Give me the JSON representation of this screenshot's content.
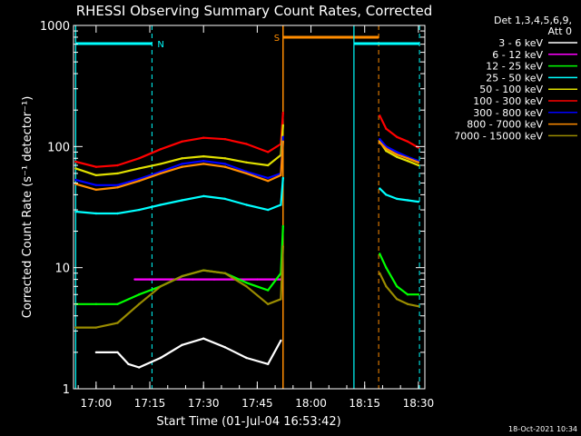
{
  "chart_data": {
    "type": "line",
    "title": "RHESSI Observing Summary Count Rates, Corrected",
    "xlabel": "Start Time (01-Jul-04 16:53:42)",
    "ylabel": "Corrected Count Rate (s⁻¹ detector⁻¹)",
    "yscale": "log",
    "xlim": [
      16.895,
      18.53
    ],
    "ylim": [
      1,
      1000
    ],
    "x_ticks": [
      {
        "x": 17.0,
        "label": "17:00"
      },
      {
        "x": 17.25,
        "label": "17:15"
      },
      {
        "x": 17.5,
        "label": "17:30"
      },
      {
        "x": 17.75,
        "label": "17:45"
      },
      {
        "x": 18.0,
        "label": "18:00"
      },
      {
        "x": 18.25,
        "label": "18:15"
      },
      {
        "x": 18.5,
        "label": "18:30"
      }
    ],
    "y_ticks": [
      {
        "y": 1,
        "label": "1"
      },
      {
        "y": 10,
        "label": "10"
      },
      {
        "y": 100,
        "label": "100"
      },
      {
        "y": 1000,
        "label": "1000"
      }
    ],
    "legend": {
      "position": "top-right",
      "header": [
        "Det 1,3,4,5,6,9,",
        "Att 0"
      ],
      "entries": [
        {
          "name": "3 - 6 keV",
          "color": "#ffffff"
        },
        {
          "name": "6 - 12 keV",
          "color": "#ff00ff"
        },
        {
          "name": "12 - 25 keV",
          "color": "#00ff00"
        },
        {
          "name": "25 - 50 keV",
          "color": "#00ffff"
        },
        {
          "name": "50 - 100 keV",
          "color": "#e0e000"
        },
        {
          "name": "100 - 300 keV",
          "color": "#ff0000"
        },
        {
          "name": "300 - 800 keV",
          "color": "#0000ff"
        },
        {
          "name": "800 - 7000 keV",
          "color": "#ff8c00"
        },
        {
          "name": "7000 - 15000 keV",
          "color": "#9a8c00"
        }
      ]
    },
    "annotations": {
      "night": {
        "label": "N",
        "start": 16.905,
        "end": 17.26,
        "color": "#00ffff"
      },
      "saa": {
        "label": "S",
        "start": 17.87,
        "end": 18.315,
        "color": "#ff8c00"
      },
      "night2": {
        "start": 18.2,
        "end": 18.505,
        "color": "#00ffff"
      }
    },
    "gap": [
      17.87,
      18.32
    ],
    "series": [
      {
        "name": "100 - 300 keV",
        "color": "#ff0000",
        "x": [
          16.905,
          17.0,
          17.1,
          17.2,
          17.3,
          17.4,
          17.5,
          17.6,
          17.7,
          17.8,
          17.86,
          17.87,
          18.32,
          18.35,
          18.4,
          18.45,
          18.5
        ],
        "y": [
          75,
          68,
          70,
          80,
          95,
          110,
          118,
          115,
          105,
          90,
          105,
          190,
          180,
          140,
          120,
          110,
          98
        ]
      },
      {
        "name": "50 - 100 keV",
        "color": "#e0e000",
        "x": [
          16.905,
          17.0,
          17.1,
          17.2,
          17.3,
          17.4,
          17.5,
          17.6,
          17.7,
          17.8,
          17.86,
          17.87,
          18.32,
          18.35,
          18.4,
          18.45,
          18.5
        ],
        "y": [
          66,
          58,
          60,
          66,
          72,
          80,
          83,
          80,
          74,
          70,
          85,
          150,
          110,
          92,
          82,
          76,
          70
        ]
      },
      {
        "name": "300 - 800 keV",
        "color": "#0000ff",
        "x": [
          16.905,
          17.0,
          17.1,
          17.2,
          17.3,
          17.4,
          17.5,
          17.6,
          17.7,
          17.8,
          17.86,
          17.87,
          18.32,
          18.35,
          18.4,
          18.45,
          18.5
        ],
        "y": [
          53,
          48,
          48,
          54,
          62,
          72,
          76,
          72,
          62,
          55,
          60,
          120,
          115,
          100,
          90,
          82,
          76
        ]
      },
      {
        "name": "800 - 7000 keV",
        "color": "#ff8c00",
        "x": [
          16.905,
          17.0,
          17.1,
          17.2,
          17.3,
          17.4,
          17.5,
          17.6,
          17.7,
          17.8,
          17.86,
          17.87,
          18.32,
          18.35,
          18.4,
          18.45,
          18.5
        ],
        "y": [
          49,
          44,
          46,
          52,
          60,
          68,
          72,
          68,
          60,
          52,
          58,
          110,
          108,
          96,
          86,
          80,
          74
        ]
      },
      {
        "name": "25 - 50 keV",
        "color": "#00ffff",
        "x": [
          16.905,
          17.0,
          17.1,
          17.2,
          17.3,
          17.4,
          17.5,
          17.6,
          17.7,
          17.8,
          17.86,
          17.87,
          18.32,
          18.35,
          18.4,
          18.45,
          18.5
        ],
        "y": [
          29,
          28,
          28,
          30,
          33,
          36,
          39,
          37,
          33,
          30,
          33,
          55,
          45,
          40,
          37,
          36,
          35
        ]
      },
      {
        "name": "6 - 12 keV",
        "color": "#ff00ff",
        "x": [
          17.18,
          17.25,
          17.35,
          17.45,
          17.55,
          17.65,
          17.75,
          17.86
        ],
        "y": [
          8,
          8,
          8,
          8,
          8,
          8,
          8,
          8
        ]
      },
      {
        "name": "12 - 25 keV",
        "color": "#00ff00",
        "x": [
          16.905,
          17.0,
          17.1,
          17.2,
          17.3,
          17.4,
          17.5,
          17.6,
          17.7,
          17.8,
          17.86,
          17.87,
          18.32,
          18.35,
          18.4,
          18.45,
          18.5
        ],
        "y": [
          5,
          5,
          5,
          6,
          7,
          8.5,
          9.5,
          9,
          7.5,
          6.5,
          9,
          22,
          13,
          10,
          7,
          6,
          6
        ]
      },
      {
        "name": "7000 - 15000 keV",
        "color": "#9a8c00",
        "x": [
          16.905,
          17.0,
          17.1,
          17.2,
          17.3,
          17.4,
          17.5,
          17.6,
          17.7,
          17.8,
          17.86,
          17.87,
          18.32,
          18.35,
          18.4,
          18.45,
          18.5
        ],
        "y": [
          3.2,
          3.2,
          3.5,
          5,
          7,
          8.5,
          9.5,
          9,
          7,
          5,
          5.5,
          15,
          9,
          7,
          5.5,
          5,
          4.8
        ]
      },
      {
        "name": "3 - 6 keV",
        "color": "#ffffff",
        "x": [
          17.0,
          17.1,
          17.15,
          17.2,
          17.3,
          17.4,
          17.5,
          17.6,
          17.7,
          17.8,
          17.86
        ],
        "y": [
          2.0,
          2.0,
          1.6,
          1.5,
          1.8,
          2.3,
          2.6,
          2.2,
          1.8,
          1.6,
          2.5
        ]
      }
    ]
  },
  "footer": {
    "timestamp": "18-Oct-2021 10:34"
  }
}
